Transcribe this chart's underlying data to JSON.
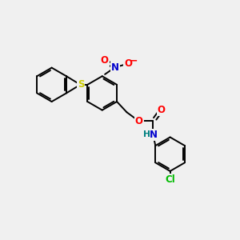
{
  "background_color": "#f0f0f0",
  "bond_color": "#000000",
  "atom_colors": {
    "O": "#ff0000",
    "N": "#0000cd",
    "S": "#cccc00",
    "Cl": "#00bb00",
    "H": "#008080",
    "C": "#000000"
  },
  "figsize": [
    3.0,
    3.0
  ],
  "dpi": 100,
  "lw": 1.4,
  "fs": 8.5,
  "r": 0.72
}
